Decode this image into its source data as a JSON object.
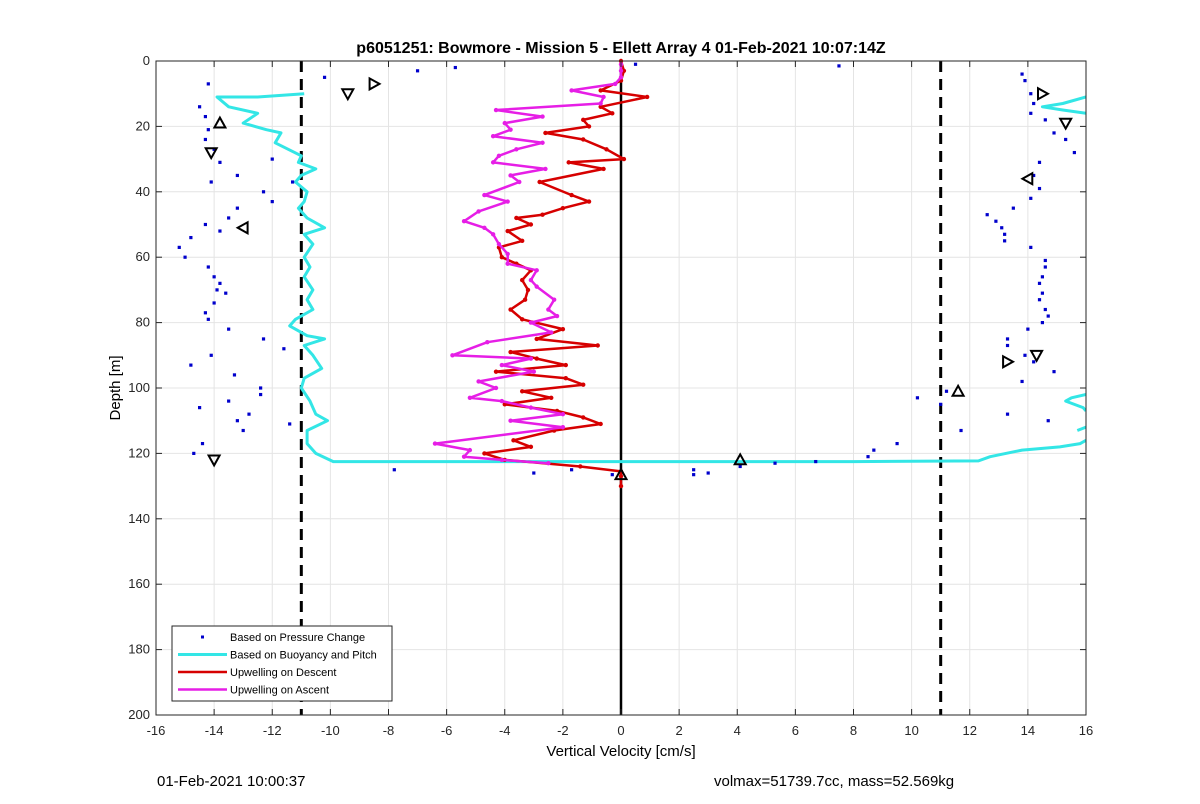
{
  "chart_data": {
    "type": "scatter",
    "title": "p6051251: Bowmore - Mission 5 - Ellett Array 4 01-Feb-2021 10:07:14Z",
    "xlabel": "Vertical Velocity [cm/s]",
    "ylabel": "Depth [m]",
    "xlim": [
      -16,
      16
    ],
    "ylim": [
      0,
      200
    ],
    "y_reversed": true,
    "grid": true,
    "x_ticks": [
      -16,
      -14,
      -12,
      -10,
      -8,
      -6,
      -4,
      -2,
      0,
      2,
      4,
      6,
      8,
      10,
      12,
      14,
      16
    ],
    "y_ticks": [
      0,
      20,
      40,
      60,
      80,
      100,
      120,
      140,
      160,
      180,
      200
    ],
    "legend_position": "bottom-left",
    "colors": {
      "pressure": "#0000cc",
      "buoyancy": "#33e6e6",
      "descent": "#d60000",
      "ascent": "#e61ee6",
      "reference": "#000000"
    },
    "reference_lines": [
      {
        "x": -11,
        "style": "dashed"
      },
      {
        "x": 11,
        "style": "dashed"
      },
      {
        "x": 0,
        "style": "solid"
      }
    ],
    "series": [
      {
        "name": "Based on Pressure Change",
        "style": "dots",
        "points": [
          [
            -14.2,
            7
          ],
          [
            -10.2,
            5
          ],
          [
            -7,
            3
          ],
          [
            -5.7,
            2
          ],
          [
            0.5,
            1
          ],
          [
            7.5,
            1.5
          ],
          [
            -14.5,
            14
          ],
          [
            -14.3,
            17
          ],
          [
            -14.2,
            21
          ],
          [
            -14.3,
            24
          ],
          [
            -14,
            27
          ],
          [
            -13.8,
            31
          ],
          [
            -14.1,
            37
          ],
          [
            -13.2,
            35
          ],
          [
            -12.3,
            40
          ],
          [
            -13.2,
            45
          ],
          [
            -13.5,
            48
          ],
          [
            -12,
            43
          ],
          [
            -11.3,
            37
          ],
          [
            -12,
            30
          ],
          [
            -13.8,
            52
          ],
          [
            -14.3,
            50
          ],
          [
            -14.8,
            54
          ],
          [
            -15.2,
            57
          ],
          [
            -15,
            60
          ],
          [
            -14.2,
            63
          ],
          [
            -14,
            66
          ],
          [
            -13.8,
            68
          ],
          [
            -13.9,
            70
          ],
          [
            -13.6,
            71
          ],
          [
            -14,
            74
          ],
          [
            -14.3,
            77
          ],
          [
            -14.2,
            79
          ],
          [
            -13.5,
            82
          ],
          [
            -12.3,
            85
          ],
          [
            -11.6,
            88
          ],
          [
            -14.1,
            90
          ],
          [
            -14.8,
            93
          ],
          [
            -13.3,
            96
          ],
          [
            -12.4,
            100
          ],
          [
            -12.4,
            102
          ],
          [
            -13.5,
            104
          ],
          [
            -14.5,
            106
          ],
          [
            -12.8,
            108
          ],
          [
            -13.2,
            110
          ],
          [
            -11.4,
            111
          ],
          [
            -13,
            113
          ],
          [
            -14.4,
            117
          ],
          [
            -14.7,
            120
          ],
          [
            -7.8,
            125
          ],
          [
            -3,
            126
          ],
          [
            -1.7,
            125
          ],
          [
            -0.3,
            126.5
          ],
          [
            2.5,
            125
          ],
          [
            2.5,
            126.5
          ],
          [
            3,
            126
          ],
          [
            4.1,
            124
          ],
          [
            5.3,
            123
          ],
          [
            6.7,
            122.5
          ],
          [
            8.5,
            121
          ],
          [
            8.7,
            119
          ],
          [
            9.5,
            117
          ],
          [
            10.2,
            103
          ],
          [
            11,
            105
          ],
          [
            11.2,
            101
          ],
          [
            11.7,
            113
          ],
          [
            13.8,
            4
          ],
          [
            13.9,
            6
          ],
          [
            14.1,
            10
          ],
          [
            14.2,
            13
          ],
          [
            14.1,
            16
          ],
          [
            14.6,
            18
          ],
          [
            14.9,
            22
          ],
          [
            15.3,
            24
          ],
          [
            15.6,
            28
          ],
          [
            14.4,
            31
          ],
          [
            14.2,
            35
          ],
          [
            14.4,
            39
          ],
          [
            14.1,
            42
          ],
          [
            13.5,
            45
          ],
          [
            12.6,
            47
          ],
          [
            12.9,
            49
          ],
          [
            13.1,
            51
          ],
          [
            13.2,
            53
          ],
          [
            13.2,
            55
          ],
          [
            14.1,
            57
          ],
          [
            14.6,
            61
          ],
          [
            14.6,
            63
          ],
          [
            14.5,
            66
          ],
          [
            14.4,
            68
          ],
          [
            14.5,
            71
          ],
          [
            14.4,
            73
          ],
          [
            14.6,
            76
          ],
          [
            14.7,
            78
          ],
          [
            14.5,
            80
          ],
          [
            14,
            82
          ],
          [
            13.3,
            85
          ],
          [
            13.3,
            87
          ],
          [
            13.9,
            90
          ],
          [
            14.2,
            92
          ],
          [
            14.9,
            95
          ],
          [
            13.8,
            98
          ],
          [
            13.3,
            108
          ],
          [
            14.7,
            110
          ]
        ]
      },
      {
        "name": "Based on Buoyancy and Pitch",
        "style": "line",
        "segments": [
          [
            [
              -10.9,
              10
            ],
            [
              -12.5,
              11
            ],
            [
              -13.9,
              11
            ],
            [
              -13.5,
              14
            ],
            [
              -12.5,
              16
            ],
            [
              -13,
              19
            ],
            [
              -12.2,
              21
            ],
            [
              -11.7,
              22
            ],
            [
              -11.9,
              25
            ],
            [
              -11,
              29
            ],
            [
              -11.1,
              31
            ],
            [
              -10.5,
              33
            ],
            [
              -11,
              35
            ],
            [
              -11.2,
              37
            ],
            [
              -10.8,
              40
            ],
            [
              -10.9,
              43
            ],
            [
              -11.1,
              45
            ],
            [
              -10.8,
              48
            ],
            [
              -10.2,
              51
            ],
            [
              -10.9,
              53
            ],
            [
              -10.6,
              56
            ],
            [
              -10.9,
              60
            ],
            [
              -10.7,
              63
            ],
            [
              -10.9,
              66
            ],
            [
              -10.6,
              70
            ],
            [
              -10.8,
              73
            ],
            [
              -10.6,
              76
            ],
            [
              -11.2,
              79
            ],
            [
              -11.4,
              81
            ],
            [
              -10.8,
              84
            ],
            [
              -10.2,
              85
            ],
            [
              -10.9,
              87
            ],
            [
              -10.6,
              90
            ],
            [
              -10.3,
              94
            ],
            [
              -10.9,
              97
            ],
            [
              -11,
              100
            ],
            [
              -10.7,
              104
            ],
            [
              -10.5,
              108
            ],
            [
              -10.1,
              110
            ],
            [
              -10.8,
              113
            ],
            [
              -10.8,
              117
            ],
            [
              -10.5,
              120
            ],
            [
              -9.9,
              122.5
            ],
            [
              0,
              122.5
            ],
            [
              4,
              122.5
            ],
            [
              8,
              122.5
            ],
            [
              12.3,
              122.3
            ],
            [
              12.7,
              121
            ],
            [
              13.8,
              119
            ],
            [
              15.1,
              118
            ],
            [
              15.8,
              117
            ],
            [
              16,
              116
            ]
          ],
          [
            [
              16,
              11
            ],
            [
              15.2,
              13
            ],
            [
              14.5,
              14
            ],
            [
              15.2,
              15
            ],
            [
              16,
              16
            ]
          ],
          [
            [
              16,
              102
            ],
            [
              15.5,
              103
            ],
            [
              15.3,
              104
            ],
            [
              15.9,
              106
            ],
            [
              16,
              107
            ]
          ],
          [
            [
              16,
              112
            ],
            [
              15.7,
              113
            ]
          ]
        ]
      },
      {
        "name": "Upwelling on Descent",
        "style": "line-markers",
        "points": [
          [
            0,
            0
          ],
          [
            0.1,
            3
          ],
          [
            0,
            6
          ],
          [
            -0.7,
            9
          ],
          [
            0.9,
            11
          ],
          [
            -0.7,
            14
          ],
          [
            -0.3,
            16
          ],
          [
            -1.3,
            18
          ],
          [
            -1.1,
            20
          ],
          [
            -2.6,
            22
          ],
          [
            -1.3,
            24
          ],
          [
            -0.5,
            27
          ],
          [
            0.1,
            30
          ],
          [
            -1.8,
            31
          ],
          [
            -0.6,
            33
          ],
          [
            -2.8,
            37
          ],
          [
            -1.7,
            41
          ],
          [
            -1.1,
            43
          ],
          [
            -2,
            45
          ],
          [
            -2.7,
            47
          ],
          [
            -3.6,
            48
          ],
          [
            -3.1,
            50
          ],
          [
            -3.9,
            52
          ],
          [
            -3.4,
            55
          ],
          [
            -4.2,
            57
          ],
          [
            -4.1,
            60
          ],
          [
            -3.6,
            62
          ],
          [
            -3.1,
            64
          ],
          [
            -3.4,
            67
          ],
          [
            -3.2,
            70
          ],
          [
            -3.3,
            73
          ],
          [
            -3.8,
            76
          ],
          [
            -3.4,
            79
          ],
          [
            -2,
            82
          ],
          [
            -2.9,
            85
          ],
          [
            -0.8,
            87
          ],
          [
            -3.8,
            89
          ],
          [
            -2.9,
            91
          ],
          [
            -1.9,
            93
          ],
          [
            -4.3,
            95
          ],
          [
            -1.9,
            97
          ],
          [
            -1.3,
            99
          ],
          [
            -3.4,
            101
          ],
          [
            -2.4,
            103
          ],
          [
            -4,
            105
          ],
          [
            -2.2,
            107
          ],
          [
            -1.3,
            109
          ],
          [
            -0.7,
            111
          ],
          [
            -2.3,
            113
          ],
          [
            -3.7,
            116
          ],
          [
            -3.1,
            118
          ],
          [
            -4.7,
            120
          ],
          [
            -4,
            122
          ],
          [
            -1.4,
            124
          ],
          [
            0,
            125.5
          ],
          [
            0,
            127
          ],
          [
            0,
            130
          ]
        ]
      },
      {
        "name": "Upwelling on Ascent",
        "style": "line-markers",
        "points": [
          [
            0,
            1
          ],
          [
            0,
            3
          ],
          [
            0,
            5
          ],
          [
            -0.2,
            7
          ],
          [
            -1.7,
            9
          ],
          [
            -0.6,
            11
          ],
          [
            -0.7,
            13
          ],
          [
            -4.3,
            15
          ],
          [
            -2.7,
            17
          ],
          [
            -4,
            19
          ],
          [
            -3.8,
            21
          ],
          [
            -4.4,
            23
          ],
          [
            -2.7,
            25
          ],
          [
            -3.6,
            27
          ],
          [
            -4.2,
            29
          ],
          [
            -4.4,
            31
          ],
          [
            -2.6,
            33
          ],
          [
            -3.8,
            35
          ],
          [
            -3.5,
            37
          ],
          [
            -4.7,
            41
          ],
          [
            -3.9,
            43
          ],
          [
            -4.9,
            46
          ],
          [
            -5.4,
            49
          ],
          [
            -4.7,
            51
          ],
          [
            -4.4,
            53
          ],
          [
            -4.2,
            56
          ],
          [
            -3.9,
            59
          ],
          [
            -3.9,
            62
          ],
          [
            -2.9,
            64
          ],
          [
            -3.1,
            67
          ],
          [
            -2.9,
            69
          ],
          [
            -2.3,
            73
          ],
          [
            -2.5,
            76
          ],
          [
            -2.2,
            78
          ],
          [
            -3.1,
            80
          ],
          [
            -2.4,
            83
          ],
          [
            -4.6,
            86
          ],
          [
            -5.8,
            90
          ],
          [
            -3.1,
            91
          ],
          [
            -4.1,
            93
          ],
          [
            -3,
            95
          ],
          [
            -4.9,
            98
          ],
          [
            -4.3,
            100
          ],
          [
            -5.2,
            103
          ],
          [
            -4.1,
            104
          ],
          [
            -3.1,
            106
          ],
          [
            -2,
            108
          ],
          [
            -3.8,
            110
          ],
          [
            -2,
            112
          ],
          [
            -6.4,
            117
          ],
          [
            -5.2,
            119
          ],
          [
            -5.4,
            121
          ],
          [
            -4.1,
            122
          ],
          [
            -2.5,
            123
          ]
        ]
      }
    ],
    "triangle_markers": [
      {
        "x": -13.8,
        "y": 19,
        "dir": "up"
      },
      {
        "x": -14.1,
        "y": 28,
        "dir": "down"
      },
      {
        "x": -13,
        "y": 51,
        "dir": "left"
      },
      {
        "x": -14,
        "y": 122,
        "dir": "down"
      },
      {
        "x": -8.5,
        "y": 7,
        "dir": "right"
      },
      {
        "x": -9.4,
        "y": 10,
        "dir": "down"
      },
      {
        "x": 0,
        "y": 126.5,
        "dir": "up"
      },
      {
        "x": 4.1,
        "y": 122,
        "dir": "up"
      },
      {
        "x": 11.6,
        "y": 101,
        "dir": "up"
      },
      {
        "x": 14.5,
        "y": 10,
        "dir": "right"
      },
      {
        "x": 15.3,
        "y": 19,
        "dir": "down"
      },
      {
        "x": 14,
        "y": 36,
        "dir": "left"
      },
      {
        "x": 13.3,
        "y": 92,
        "dir": "right"
      },
      {
        "x": 14.3,
        "y": 90,
        "dir": "down"
      }
    ]
  },
  "footer": {
    "left": "01-Feb-2021 10:00:37",
    "right": "volmax=51739.7cc, mass=52.569kg"
  }
}
